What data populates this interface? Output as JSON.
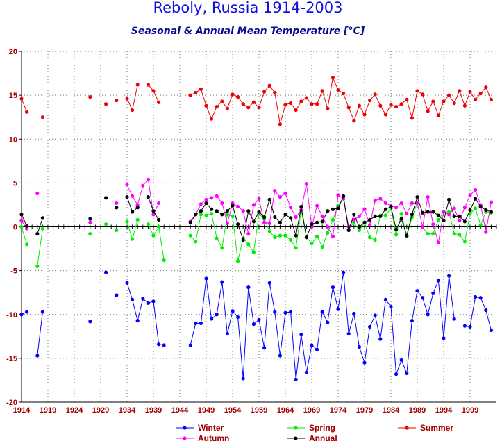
{
  "chart_data": {
    "type": "line",
    "title": "Reboly, Russia  1914-2003",
    "subtitle": "Seasonal & Annual Mean Temperature [°C]",
    "xlim": [
      1914,
      2004
    ],
    "ylim": [
      -20,
      20
    ],
    "yticks": [
      20,
      15,
      10,
      5,
      0,
      -5,
      -10,
      -15,
      -20
    ],
    "xticks": [
      1914,
      1919,
      1924,
      1929,
      1934,
      1939,
      1944,
      1949,
      1954,
      1959,
      1964,
      1969,
      1974,
      1979,
      1984,
      1989,
      1994,
      1999
    ],
    "grid": true,
    "legend_position": "bottom",
    "series": [
      {
        "name": "Winter",
        "color": "#0000ff",
        "x": [
          1914,
          1915,
          1917,
          1918,
          1927,
          1930,
          1932,
          1934,
          1935,
          1936,
          1937,
          1938,
          1939,
          1940,
          1941,
          1946,
          1947,
          1948,
          1949,
          1950,
          1951,
          1952,
          1953,
          1954,
          1955,
          1956,
          1957,
          1958,
          1959,
          1960,
          1961,
          1962,
          1963,
          1964,
          1965,
          1966,
          1967,
          1968,
          1969,
          1970,
          1971,
          1972,
          1973,
          1974,
          1975,
          1976,
          1977,
          1978,
          1979,
          1980,
          1981,
          1982,
          1983,
          1984,
          1985,
          1986,
          1987,
          1988,
          1989,
          1990,
          1991,
          1992,
          1993,
          1994,
          1995,
          1996,
          1997,
          1998,
          1999,
          2000,
          2001,
          2002,
          2003
        ],
        "y": [
          -10,
          -9.7,
          -14.7,
          -9.7,
          -10.8,
          -5.2,
          -7.8,
          -6.4,
          -8.3,
          -10.7,
          -8.2,
          -8.7,
          -8.5,
          -13.4,
          -13.5,
          -13.5,
          -11,
          -11,
          -5.9,
          -10.5,
          -10,
          -6.3,
          -12.2,
          -9.6,
          -10.3,
          -17.3,
          -6.9,
          -11.1,
          -10.6,
          -13.8,
          -6.4,
          -9.7,
          -14.7,
          -9.8,
          -9.7,
          -17.4,
          -12.3,
          -16.6,
          -13.5,
          -14,
          -9.7,
          -10.9,
          -6.9,
          -9.4,
          -5.2,
          -12.2,
          -9.9,
          -13.7,
          -15.5,
          -11.4,
          -10.1,
          -12.8,
          -8.3,
          -9.1,
          -16.8,
          -15.2,
          -16.7,
          -10.7,
          -7.3,
          -8.1,
          -10,
          -7.6,
          -6.1,
          -12.7,
          -5.6,
          -10.5,
          null,
          -11.3,
          -11.4,
          -8,
          -8.1,
          -9.5,
          -11.8
        ]
      },
      {
        "name": "Spring",
        "color": "#00ee00",
        "x": [
          1914,
          1915,
          1917,
          1918,
          1927,
          1930,
          1932,
          1934,
          1935,
          1936,
          1937,
          1938,
          1939,
          1940,
          1941,
          1946,
          1947,
          1948,
          1949,
          1950,
          1951,
          1952,
          1953,
          1954,
          1955,
          1956,
          1957,
          1958,
          1959,
          1960,
          1961,
          1962,
          1963,
          1964,
          1965,
          1966,
          1967,
          1968,
          1969,
          1970,
          1971,
          1972,
          1973,
          1974,
          1975,
          1976,
          1977,
          1978,
          1979,
          1980,
          1981,
          1982,
          1983,
          1984,
          1985,
          1986,
          1987,
          1988,
          1989,
          1990,
          1991,
          1992,
          1993,
          1994,
          1995,
          1996,
          1997,
          1998,
          1999,
          2000,
          2001,
          2002,
          2003
        ],
        "y": [
          0,
          -2,
          -4.5,
          -0.2,
          -0.8,
          0.3,
          -0.4,
          0.6,
          -1.4,
          0.8,
          null,
          0.3,
          -1,
          0,
          -3.8,
          -1,
          -1.7,
          1.4,
          1.3,
          1.5,
          -1.3,
          -2.4,
          1.4,
          1.2,
          -3.9,
          -1.3,
          -2,
          -2.9,
          1.5,
          0.9,
          -0.5,
          -1.2,
          -1,
          -1,
          -1.5,
          -2.4,
          1.9,
          -1.2,
          -1.9,
          -1.1,
          -2.3,
          -0.7,
          0.8,
          2.4,
          3.3,
          -0.3,
          0.5,
          -0.4,
          0.5,
          -1.2,
          -1.5,
          1.3,
          1.3,
          2.1,
          -0.9,
          1.5,
          -1.1,
          1.1,
          2.7,
          0,
          -0.8,
          -0.8,
          0.8,
          1.7,
          1.7,
          -0.8,
          -0.9,
          -1.7,
          1.5,
          2.1,
          0.2,
          1.7,
          1.6
        ]
      },
      {
        "name": "Summer",
        "color": "#ee0000",
        "x": [
          1914,
          1915,
          1918,
          1927,
          1930,
          1932,
          1934,
          1935,
          1936,
          1937,
          1938,
          1939,
          1940,
          1946,
          1947,
          1948,
          1949,
          1950,
          1951,
          1952,
          1953,
          1954,
          1955,
          1956,
          1957,
          1958,
          1959,
          1960,
          1961,
          1962,
          1963,
          1964,
          1965,
          1966,
          1967,
          1968,
          1969,
          1970,
          1971,
          1972,
          1973,
          1974,
          1975,
          1976,
          1977,
          1978,
          1979,
          1980,
          1981,
          1982,
          1983,
          1984,
          1985,
          1986,
          1987,
          1988,
          1989,
          1990,
          1991,
          1992,
          1993,
          1994,
          1995,
          1996,
          1997,
          1998,
          1999,
          2000,
          2001,
          2002,
          2003
        ],
        "y": [
          14.6,
          13.1,
          12.5,
          14.8,
          14,
          14.4,
          14.6,
          13.3,
          16.2,
          null,
          16.2,
          15.5,
          14.2,
          15,
          15.3,
          15.7,
          13.8,
          12.3,
          13.7,
          14.3,
          13.5,
          15.1,
          14.8,
          14,
          13.6,
          14.2,
          13.6,
          15.4,
          16.1,
          15.3,
          11.7,
          13.9,
          14.1,
          13.3,
          14.3,
          14.7,
          14,
          14,
          15.5,
          13.5,
          17,
          15.6,
          15.2,
          13.6,
          12.1,
          13.8,
          12.8,
          14.4,
          15.1,
          13.8,
          12.8,
          13.9,
          13.7,
          14,
          14.5,
          12.4,
          15.5,
          15.1,
          13.2,
          14.3,
          12.7,
          14.3,
          15,
          14.1,
          15.5,
          13.8,
          15.4,
          14.5,
          15.2,
          15.9,
          14.5
        ]
      },
      {
        "name": "Autumn",
        "color": "#ff00ff",
        "x": [
          1914,
          1915,
          1917,
          1918,
          1927,
          1930,
          1932,
          1934,
          1935,
          1936,
          1937,
          1938,
          1939,
          1940,
          1946,
          1947,
          1948,
          1949,
          1950,
          1951,
          1952,
          1953,
          1954,
          1955,
          1956,
          1957,
          1958,
          1959,
          1960,
          1961,
          1962,
          1963,
          1964,
          1965,
          1966,
          1967,
          1968,
          1969,
          1970,
          1971,
          1972,
          1973,
          1974,
          1975,
          1976,
          1977,
          1978,
          1979,
          1980,
          1981,
          1982,
          1983,
          1984,
          1985,
          1986,
          1987,
          1988,
          1989,
          1990,
          1991,
          1992,
          1993,
          1994,
          1995,
          1996,
          1997,
          1998,
          1999,
          2000,
          2001,
          2002,
          2003
        ],
        "y": [
          0.7,
          -0.2,
          3.8,
          null,
          0.5,
          null,
          2.7,
          4.8,
          3.5,
          2.5,
          4.7,
          5.4,
          1.4,
          2.7,
          0.6,
          1.4,
          2.6,
          3.1,
          3.3,
          3.5,
          2.7,
          0.4,
          2.7,
          2.3,
          1.8,
          -0.8,
          2.5,
          3.2,
          0.5,
          0.4,
          4.1,
          3.4,
          3.8,
          2.2,
          1.1,
          1.9,
          4.9,
          0,
          2.4,
          1.2,
          0,
          -1.1,
          3.6,
          3.2,
          0,
          0.8,
          1.2,
          2,
          0.2,
          3,
          3.2,
          2.7,
          2.4,
          2.2,
          2.7,
          1.5,
          2.7,
          2.7,
          0,
          3.4,
          0.3,
          -1.8,
          1.7,
          1.4,
          2.1,
          0.7,
          2.2,
          3.6,
          4.2,
          2.5,
          -0.6,
          2.8
        ]
      },
      {
        "name": "Annual",
        "color": "#000000",
        "x": [
          1914,
          1915,
          1917,
          1918,
          1927,
          1930,
          1932,
          1934,
          1935,
          1936,
          1937,
          1938,
          1939,
          1940,
          1946,
          1947,
          1948,
          1949,
          1950,
          1951,
          1952,
          1953,
          1954,
          1955,
          1956,
          1957,
          1958,
          1959,
          1960,
          1961,
          1962,
          1963,
          1964,
          1965,
          1966,
          1967,
          1968,
          1969,
          1970,
          1971,
          1972,
          1973,
          1974,
          1975,
          1976,
          1977,
          1978,
          1979,
          1980,
          1981,
          1982,
          1983,
          1984,
          1985,
          1986,
          1987,
          1988,
          1989,
          1990,
          1991,
          1992,
          1993,
          1994,
          1995,
          1996,
          1997,
          1998,
          1999,
          2000,
          2001,
          2002,
          2003
        ],
        "y": [
          1.4,
          0.1,
          -0.8,
          1,
          0.9,
          3.3,
          2.2,
          3.4,
          1.7,
          2.2,
          null,
          3.4,
          1.8,
          0.8,
          0.5,
          1.4,
          1.8,
          2.7,
          2,
          1.8,
          1.4,
          1.8,
          2.4,
          0.3,
          -1.5,
          1.8,
          0.6,
          1.7,
          1.1,
          3.1,
          1.1,
          0.5,
          1.4,
          1,
          -1,
          2.3,
          -1.2,
          0.3,
          0.5,
          0.6,
          1.8,
          2,
          2.1,
          3.5,
          -0.4,
          1.4,
          0,
          0.5,
          0.8,
          1.2,
          1.2,
          2,
          2.3,
          -0.3,
          0.9,
          -1,
          1.4,
          3.4,
          1.6,
          1.7,
          1.7,
          1.3,
          0.7,
          3.1,
          1.2,
          1.2,
          0.6,
          1.9,
          3.2,
          2.3,
          1.9,
          1.7
        ]
      }
    ]
  }
}
